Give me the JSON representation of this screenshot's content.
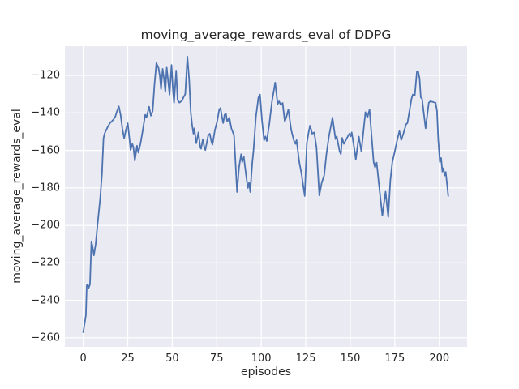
{
  "figure": {
    "background": "#ffffff"
  },
  "chart_data": {
    "type": "line",
    "title": "moving_average_rewards_eval of DDPG",
    "xlabel": "episodes",
    "ylabel": "moving_average_rewards_eval",
    "xlim": [
      -10.3,
      215.6
    ],
    "ylim": [
      -264.8,
      -104.4
    ],
    "xticks": [
      0,
      25,
      50,
      75,
      100,
      125,
      150,
      175,
      200
    ],
    "yticks": [
      -120,
      -140,
      -160,
      -180,
      -200,
      -220,
      -240,
      -260
    ],
    "grid": true,
    "legend": false,
    "style": {
      "axes_background": "#eaeaf2",
      "grid_color": "#ffffff",
      "line_color": "#4c72b0",
      "text_color": "#262626",
      "line_width": 1.8
    },
    "series": [
      {
        "name": "moving_average_rewards_eval",
        "points": [
          [
            0,
            -257
          ],
          [
            1.5,
            -248
          ],
          [
            2,
            -232
          ],
          [
            2.5,
            -231.5
          ],
          [
            3,
            -233.5
          ],
          [
            3.8,
            -231.5
          ],
          [
            4.6,
            -208.5
          ],
          [
            5.2,
            -211
          ],
          [
            6,
            -216
          ],
          [
            7,
            -210
          ],
          [
            8,
            -200
          ],
          [
            9.5,
            -186
          ],
          [
            10.5,
            -173
          ],
          [
            11.4,
            -153.5
          ],
          [
            12,
            -151
          ],
          [
            13,
            -149
          ],
          [
            14,
            -147
          ],
          [
            15,
            -145.5
          ],
          [
            16,
            -144.5
          ],
          [
            17,
            -143.5
          ],
          [
            18,
            -142
          ],
          [
            19,
            -139
          ],
          [
            20,
            -136.5
          ],
          [
            21,
            -141
          ],
          [
            22,
            -148.5
          ],
          [
            23,
            -153.5
          ],
          [
            24,
            -149
          ],
          [
            25,
            -145.5
          ],
          [
            26,
            -154
          ],
          [
            26.6,
            -159.8
          ],
          [
            27.6,
            -156.5
          ],
          [
            28.2,
            -158.5
          ],
          [
            29,
            -165.5
          ],
          [
            30.2,
            -157.5
          ],
          [
            31,
            -161.2
          ],
          [
            32.2,
            -156.2
          ],
          [
            33.5,
            -149
          ],
          [
            34.8,
            -141
          ],
          [
            35.5,
            -142.5
          ],
          [
            37,
            -136.7
          ],
          [
            38,
            -141.5
          ],
          [
            39,
            -139
          ],
          [
            40,
            -125
          ],
          [
            41.1,
            -113.4
          ],
          [
            42.3,
            -116
          ],
          [
            43,
            -120
          ],
          [
            43.7,
            -127.3
          ],
          [
            44.6,
            -116.5
          ],
          [
            45.4,
            -122
          ],
          [
            46.1,
            -128.8
          ],
          [
            46.9,
            -115.8
          ],
          [
            47.8,
            -124
          ],
          [
            48.5,
            -130.2
          ],
          [
            49.6,
            -114.4
          ],
          [
            50.4,
            -128
          ],
          [
            51,
            -134.6
          ],
          [
            52.2,
            -117.4
          ],
          [
            53,
            -133.1
          ],
          [
            54,
            -134.5
          ],
          [
            55.5,
            -133.5
          ],
          [
            56.3,
            -131.7
          ],
          [
            57.3,
            -130
          ],
          [
            58.5,
            -110
          ],
          [
            59.5,
            -122
          ],
          [
            60.4,
            -139.6
          ],
          [
            61.2,
            -146.8
          ],
          [
            61.9,
            -151.1
          ],
          [
            62.4,
            -148.2
          ],
          [
            63.5,
            -156.2
          ],
          [
            64.7,
            -150.4
          ],
          [
            65.7,
            -158.3
          ],
          [
            66.2,
            -159.1
          ],
          [
            67.2,
            -154
          ],
          [
            68,
            -158.3
          ],
          [
            68.6,
            -159.8
          ],
          [
            70.2,
            -152
          ],
          [
            71.1,
            -151.1
          ],
          [
            72,
            -155.4
          ],
          [
            72.6,
            -156.9
          ],
          [
            74,
            -149
          ],
          [
            75.2,
            -144.6
          ],
          [
            76.4,
            -138.2
          ],
          [
            77.1,
            -137.4
          ],
          [
            78,
            -142.5
          ],
          [
            78.6,
            -145.4
          ],
          [
            79.4,
            -141
          ],
          [
            80.1,
            -140.3
          ],
          [
            80.9,
            -144.6
          ],
          [
            82.1,
            -142.5
          ],
          [
            83.2,
            -148.2
          ],
          [
            84.7,
            -152
          ],
          [
            86.4,
            -182.2
          ],
          [
            87.5,
            -169
          ],
          [
            88.7,
            -162
          ],
          [
            89.3,
            -166.2
          ],
          [
            90.2,
            -163.4
          ],
          [
            91.7,
            -175
          ],
          [
            92.5,
            -180
          ],
          [
            93.2,
            -177
          ],
          [
            93.8,
            -182.2
          ],
          [
            95,
            -166
          ],
          [
            95.6,
            -160.5
          ],
          [
            97,
            -142
          ],
          [
            98.4,
            -131.7
          ],
          [
            99.3,
            -130.2
          ],
          [
            100.4,
            -144
          ],
          [
            101.6,
            -154.6
          ],
          [
            102.3,
            -152.5
          ],
          [
            103.1,
            -155
          ],
          [
            104.5,
            -146
          ],
          [
            106,
            -134
          ],
          [
            107.8,
            -123.8
          ],
          [
            109.2,
            -135.3
          ],
          [
            110,
            -133.8
          ],
          [
            111,
            -135.8
          ],
          [
            112,
            -134.7
          ],
          [
            113.2,
            -144.6
          ],
          [
            114,
            -142.5
          ],
          [
            115.2,
            -138.2
          ],
          [
            116.8,
            -149
          ],
          [
            118.3,
            -154.7
          ],
          [
            119.2,
            -156.5
          ],
          [
            119.8,
            -154.5
          ],
          [
            121.3,
            -166
          ],
          [
            122.5,
            -172
          ],
          [
            124.4,
            -184.3
          ],
          [
            125.6,
            -156
          ],
          [
            126.6,
            -150.3
          ],
          [
            127.4,
            -146.8
          ],
          [
            128.6,
            -151.1
          ],
          [
            129.7,
            -150.4
          ],
          [
            131,
            -158.3
          ],
          [
            132.6,
            -184
          ],
          [
            134,
            -177
          ],
          [
            135.3,
            -173.5
          ],
          [
            136.6,
            -162
          ],
          [
            138,
            -152.5
          ],
          [
            140,
            -142.5
          ],
          [
            141.7,
            -154
          ],
          [
            142.4,
            -152.5
          ],
          [
            144,
            -160.5
          ],
          [
            144.7,
            -162
          ],
          [
            145.4,
            -153.3
          ],
          [
            146.4,
            -156.5
          ],
          [
            147.5,
            -154.5
          ],
          [
            149.4,
            -151.1
          ],
          [
            150.2,
            -152.5
          ],
          [
            150.8,
            -150.4
          ],
          [
            152.5,
            -160.5
          ],
          [
            153.1,
            -164.8
          ],
          [
            154.8,
            -152.6
          ],
          [
            156.2,
            -160.5
          ],
          [
            158.5,
            -139.6
          ],
          [
            159.6,
            -142.5
          ],
          [
            160.8,
            -138.2
          ],
          [
            163.1,
            -166.2
          ],
          [
            163.9,
            -169.1
          ],
          [
            164.8,
            -166.5
          ],
          [
            166.3,
            -180
          ],
          [
            168,
            -194.8
          ],
          [
            169.8,
            -182
          ],
          [
            171.3,
            -195.5
          ],
          [
            172.5,
            -176
          ],
          [
            173.6,
            -166.3
          ],
          [
            175,
            -160.5
          ],
          [
            176.3,
            -154.6
          ],
          [
            177.6,
            -149.7
          ],
          [
            178.6,
            -154.5
          ],
          [
            179.8,
            -151.1
          ],
          [
            181.3,
            -146.1
          ],
          [
            182.1,
            -145.4
          ],
          [
            184.4,
            -132.4
          ],
          [
            185.1,
            -130.2
          ],
          [
            186.2,
            -130.8
          ],
          [
            187.4,
            -118
          ],
          [
            188.1,
            -117.7
          ],
          [
            188.9,
            -121.6
          ],
          [
            189.6,
            -131.7
          ],
          [
            190.3,
            -132.4
          ],
          [
            192.3,
            -148.2
          ],
          [
            194.1,
            -134.6
          ],
          [
            194.9,
            -133.8
          ],
          [
            196.5,
            -134.2
          ],
          [
            197.9,
            -134.6
          ],
          [
            198.7,
            -139
          ],
          [
            199.4,
            -154
          ],
          [
            200.3,
            -166.2
          ],
          [
            201,
            -164
          ],
          [
            201.7,
            -171.3
          ],
          [
            202.3,
            -169.5
          ],
          [
            203,
            -173.4
          ],
          [
            203.6,
            -171.5
          ],
          [
            204.3,
            -177.7
          ],
          [
            205,
            -184.3
          ]
        ]
      }
    ]
  }
}
